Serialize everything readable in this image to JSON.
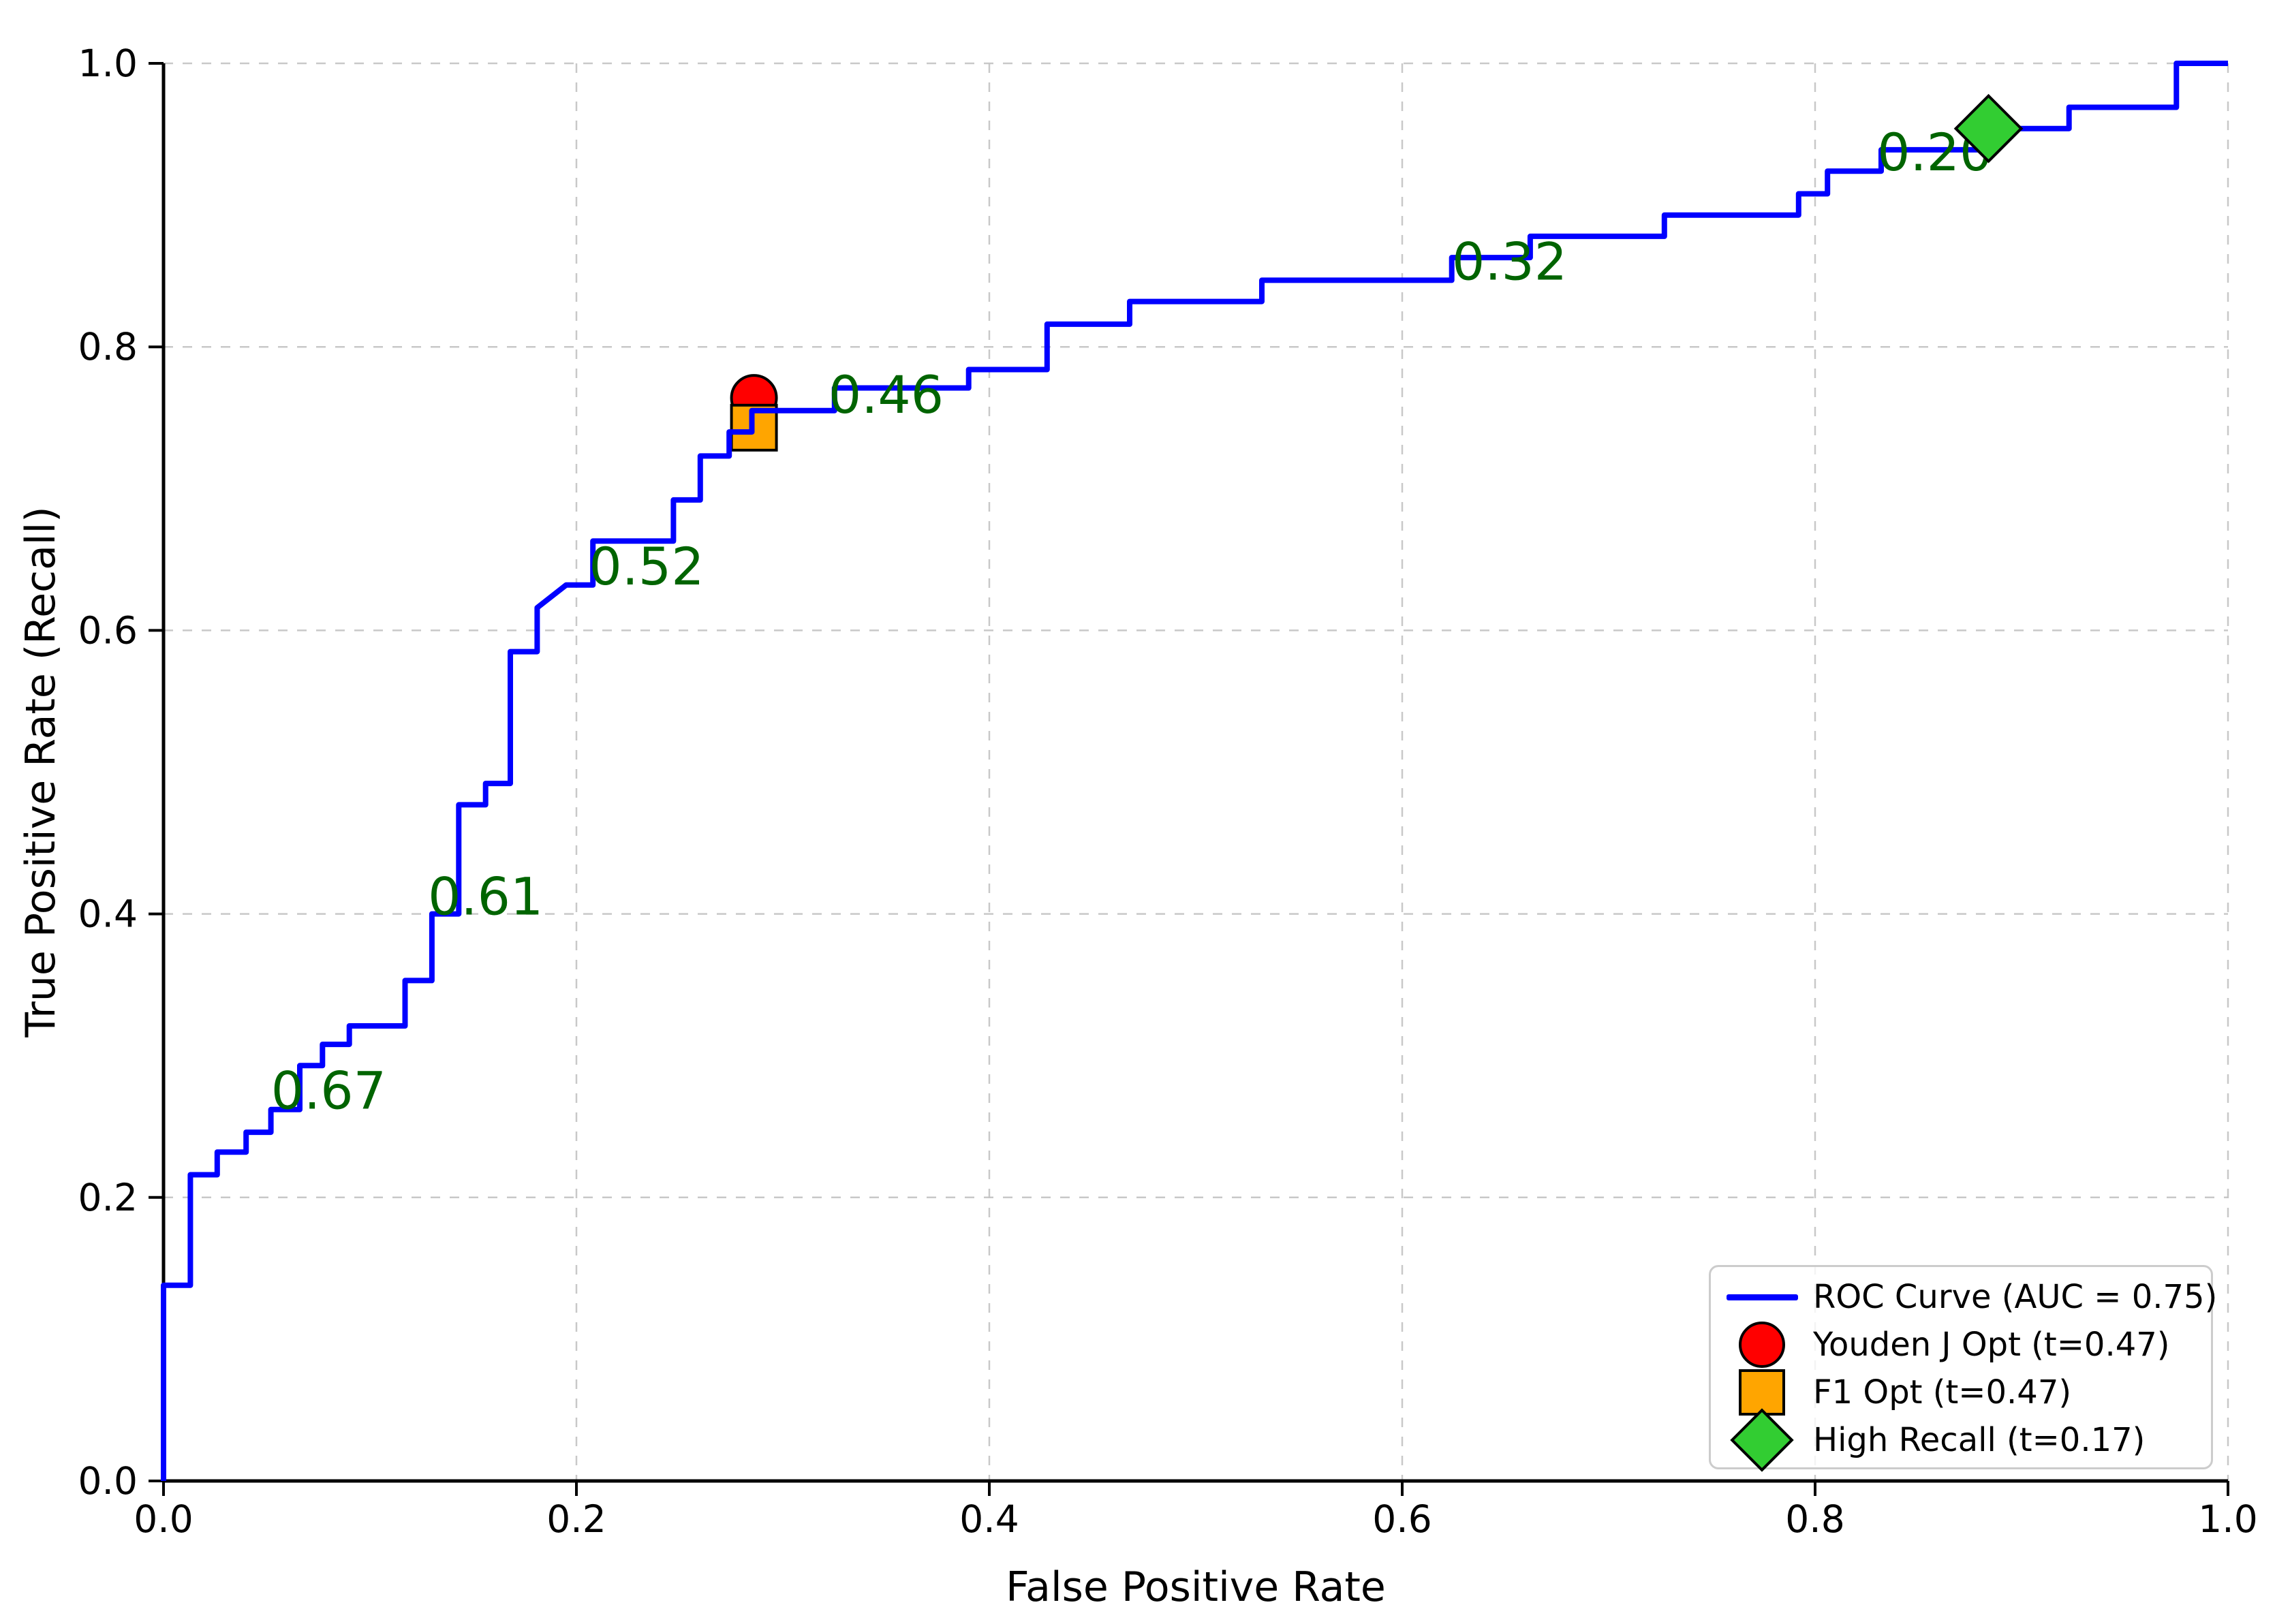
{
  "chart_data": {
    "type": "line",
    "subtype": "roc-step-curve",
    "title": "",
    "xlabel": "False Positive Rate",
    "ylabel": "True Positive Rate (Recall)",
    "xlim": [
      0.0,
      1.0
    ],
    "ylim": [
      0.0,
      1.0
    ],
    "x_ticks": [
      0.0,
      0.2,
      0.4,
      0.6,
      0.8,
      1.0
    ],
    "y_ticks": [
      0.0,
      0.2,
      0.4,
      0.6,
      0.8,
      1.0
    ],
    "tick_format": [
      "0.0",
      "0.2",
      "0.4",
      "0.6",
      "0.8",
      "1.0"
    ],
    "grid": true,
    "grid_color": "#c3c3c3",
    "series": [
      {
        "name": "ROC Curve (AUC = 0.75)",
        "color": "#0000ff",
        "auc": 0.75,
        "points": [
          [
            0.0,
            0.0
          ],
          [
            0.0,
            0.138
          ],
          [
            0.013,
            0.138
          ],
          [
            0.013,
            0.216
          ],
          [
            0.026,
            0.216
          ],
          [
            0.026,
            0.232
          ],
          [
            0.04,
            0.232
          ],
          [
            0.04,
            0.246
          ],
          [
            0.052,
            0.246
          ],
          [
            0.052,
            0.262
          ],
          [
            0.066,
            0.262
          ],
          [
            0.066,
            0.293
          ],
          [
            0.077,
            0.293
          ],
          [
            0.077,
            0.308
          ],
          [
            0.09,
            0.308
          ],
          [
            0.09,
            0.321
          ],
          [
            0.117,
            0.321
          ],
          [
            0.117,
            0.353
          ],
          [
            0.13,
            0.353
          ],
          [
            0.13,
            0.4
          ],
          [
            0.143,
            0.4
          ],
          [
            0.143,
            0.477
          ],
          [
            0.156,
            0.477
          ],
          [
            0.156,
            0.492
          ],
          [
            0.168,
            0.492
          ],
          [
            0.168,
            0.585
          ],
          [
            0.181,
            0.585
          ],
          [
            0.181,
            0.616
          ],
          [
            0.195,
            0.632
          ],
          [
            0.208,
            0.632
          ],
          [
            0.208,
            0.663
          ],
          [
            0.247,
            0.663
          ],
          [
            0.247,
            0.692
          ],
          [
            0.26,
            0.692
          ],
          [
            0.26,
            0.723
          ],
          [
            0.274,
            0.723
          ],
          [
            0.274,
            0.74
          ],
          [
            0.285,
            0.74
          ],
          [
            0.285,
            0.755
          ],
          [
            0.325,
            0.755
          ],
          [
            0.325,
            0.771
          ],
          [
            0.39,
            0.771
          ],
          [
            0.39,
            0.784
          ],
          [
            0.428,
            0.784
          ],
          [
            0.428,
            0.816
          ],
          [
            0.468,
            0.816
          ],
          [
            0.468,
            0.832
          ],
          [
            0.532,
            0.832
          ],
          [
            0.532,
            0.847
          ],
          [
            0.624,
            0.847
          ],
          [
            0.624,
            0.863
          ],
          [
            0.662,
            0.863
          ],
          [
            0.662,
            0.878
          ],
          [
            0.727,
            0.878
          ],
          [
            0.727,
            0.893
          ],
          [
            0.792,
            0.893
          ],
          [
            0.792,
            0.908
          ],
          [
            0.806,
            0.908
          ],
          [
            0.806,
            0.924
          ],
          [
            0.832,
            0.924
          ],
          [
            0.832,
            0.939
          ],
          [
            0.883,
            0.939
          ],
          [
            0.883,
            0.954
          ],
          [
            0.923,
            0.954
          ],
          [
            0.923,
            0.969
          ],
          [
            0.975,
            0.969
          ],
          [
            0.975,
            1.0
          ],
          [
            1.0,
            1.0
          ]
        ]
      }
    ],
    "markers": [
      {
        "name": "Youden J Opt (t=0.47)",
        "shape": "circle",
        "color": "#ff0000",
        "threshold": 0.47,
        "x": 0.286,
        "y": 0.764
      },
      {
        "name": "F1 Opt (t=0.47)",
        "shape": "square",
        "color": "#ffa500",
        "threshold": 0.47,
        "x": 0.286,
        "y": 0.743
      },
      {
        "name": "High Recall (t=0.17)",
        "shape": "diamond",
        "color": "#32cd32",
        "threshold": 0.17,
        "x": 0.884,
        "y": 0.954
      }
    ],
    "annotations": [
      {
        "label": "0.67",
        "x": 0.08,
        "y": 0.275
      },
      {
        "label": "0.61",
        "x": 0.156,
        "y": 0.412
      },
      {
        "label": "0.52",
        "x": 0.234,
        "y": 0.645
      },
      {
        "label": "0.46",
        "x": 0.35,
        "y": 0.766
      },
      {
        "label": "0.32",
        "x": 0.652,
        "y": 0.86
      },
      {
        "label": "0.20",
        "x": 0.858,
        "y": 0.937
      }
    ],
    "annotation_color": "#006400",
    "legend": {
      "position": "lower right",
      "items": [
        {
          "label": "ROC Curve (AUC = 0.75)",
          "handle": "line",
          "color": "#0000ff"
        },
        {
          "label": "Youden J Opt (t=0.47)",
          "handle": "circle",
          "color": "#ff0000"
        },
        {
          "label": "F1 Opt (t=0.47)",
          "handle": "square",
          "color": "#ffa500"
        },
        {
          "label": "High Recall (t=0.17)",
          "handle": "diamond",
          "color": "#32cd32"
        }
      ]
    }
  }
}
